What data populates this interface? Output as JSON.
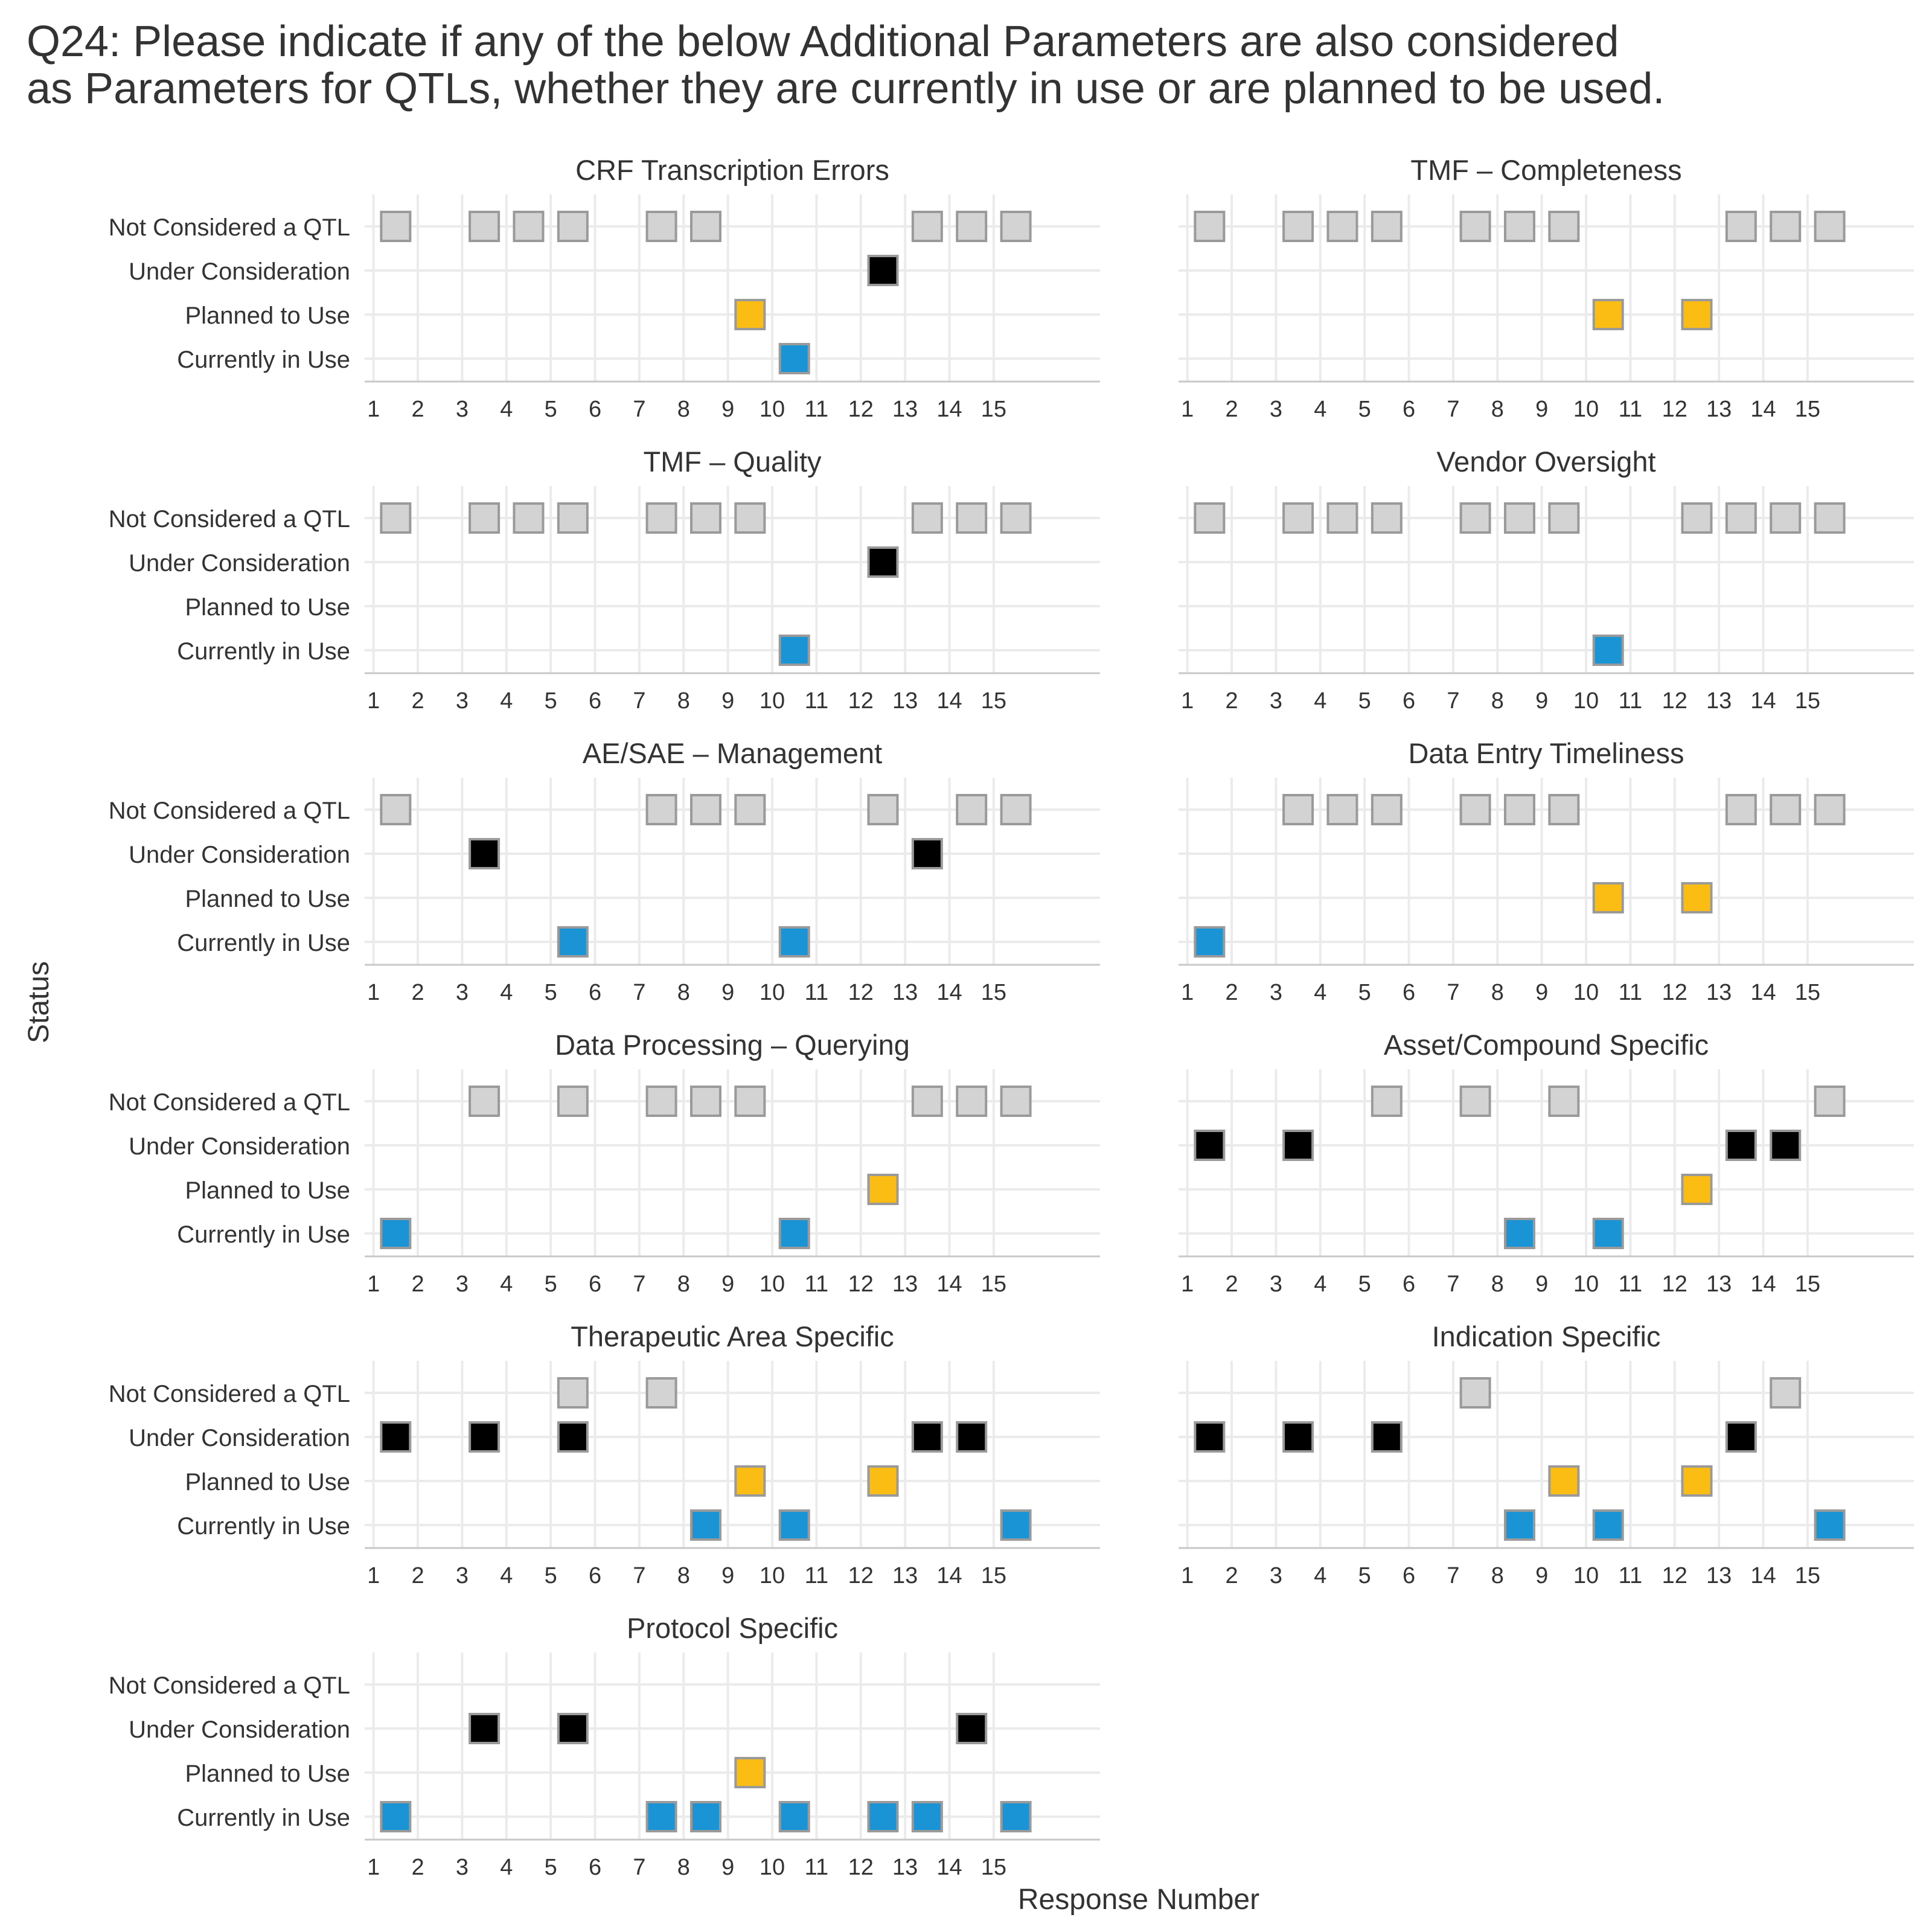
{
  "title_lines": [
    "Q24: Please indicate if any of the below Additional Parameters are also considered",
    "as Parameters for QTLs, whether they are currently in use or are planned to be used."
  ],
  "chart_data": {
    "type": "scatter",
    "title": "Q24: Please indicate if any of the below Additional Parameters are also considered as Parameters for QTLs, whether they are currently in use or are planned to be used.",
    "xlabel": "Response Number",
    "ylabel": "Status",
    "x_ticks": [
      1,
      2,
      3,
      4,
      5,
      6,
      7,
      8,
      9,
      10,
      11,
      12,
      13,
      14,
      15
    ],
    "x_range": [
      0.8,
      17.4
    ],
    "status_levels": [
      "Not Considered a QTL",
      "Under Consideration",
      "Planned to Use",
      "Currently in Use"
    ],
    "grid": true,
    "colors": {
      "Not Considered a QTL": "#d3d3d3",
      "Under Consideration": "#000000",
      "Planned to Use": "#fbbc14",
      "Currently in Use": "#1a94d4",
      "marker_border": "#9a9a9a"
    },
    "panels": [
      {
        "name": "CRF Transcription Errors",
        "points": [
          {
            "x": 1,
            "status": "Not Considered a QTL"
          },
          {
            "x": 3,
            "status": "Not Considered a QTL"
          },
          {
            "x": 4,
            "status": "Not Considered a QTL"
          },
          {
            "x": 5,
            "status": "Not Considered a QTL"
          },
          {
            "x": 7,
            "status": "Not Considered a QTL"
          },
          {
            "x": 8,
            "status": "Not Considered a QTL"
          },
          {
            "x": 9,
            "status": "Planned to Use"
          },
          {
            "x": 10,
            "status": "Currently in Use"
          },
          {
            "x": 12,
            "status": "Under Consideration"
          },
          {
            "x": 13,
            "status": "Not Considered a QTL"
          },
          {
            "x": 14,
            "status": "Not Considered a QTL"
          },
          {
            "x": 15,
            "status": "Not Considered a QTL"
          }
        ]
      },
      {
        "name": "TMF – Completeness",
        "points": [
          {
            "x": 1,
            "status": "Not Considered a QTL"
          },
          {
            "x": 3,
            "status": "Not Considered a QTL"
          },
          {
            "x": 4,
            "status": "Not Considered a QTL"
          },
          {
            "x": 5,
            "status": "Not Considered a QTL"
          },
          {
            "x": 7,
            "status": "Not Considered a QTL"
          },
          {
            "x": 8,
            "status": "Not Considered a QTL"
          },
          {
            "x": 9,
            "status": "Not Considered a QTL"
          },
          {
            "x": 10,
            "status": "Planned to Use"
          },
          {
            "x": 12,
            "status": "Planned to Use"
          },
          {
            "x": 13,
            "status": "Not Considered a QTL"
          },
          {
            "x": 14,
            "status": "Not Considered a QTL"
          },
          {
            "x": 15,
            "status": "Not Considered a QTL"
          }
        ]
      },
      {
        "name": "TMF – Quality",
        "points": [
          {
            "x": 1,
            "status": "Not Considered a QTL"
          },
          {
            "x": 3,
            "status": "Not Considered a QTL"
          },
          {
            "x": 4,
            "status": "Not Considered a QTL"
          },
          {
            "x": 5,
            "status": "Not Considered a QTL"
          },
          {
            "x": 7,
            "status": "Not Considered a QTL"
          },
          {
            "x": 8,
            "status": "Not Considered a QTL"
          },
          {
            "x": 9,
            "status": "Not Considered a QTL"
          },
          {
            "x": 10,
            "status": "Currently in Use"
          },
          {
            "x": 12,
            "status": "Under Consideration"
          },
          {
            "x": 13,
            "status": "Not Considered a QTL"
          },
          {
            "x": 14,
            "status": "Not Considered a QTL"
          },
          {
            "x": 15,
            "status": "Not Considered a QTL"
          }
        ]
      },
      {
        "name": "Vendor Oversight",
        "points": [
          {
            "x": 1,
            "status": "Not Considered a QTL"
          },
          {
            "x": 3,
            "status": "Not Considered a QTL"
          },
          {
            "x": 4,
            "status": "Not Considered a QTL"
          },
          {
            "x": 5,
            "status": "Not Considered a QTL"
          },
          {
            "x": 7,
            "status": "Not Considered a QTL"
          },
          {
            "x": 8,
            "status": "Not Considered a QTL"
          },
          {
            "x": 9,
            "status": "Not Considered a QTL"
          },
          {
            "x": 10,
            "status": "Currently in Use"
          },
          {
            "x": 12,
            "status": "Not Considered a QTL"
          },
          {
            "x": 13,
            "status": "Not Considered a QTL"
          },
          {
            "x": 14,
            "status": "Not Considered a QTL"
          },
          {
            "x": 15,
            "status": "Not Considered a QTL"
          }
        ]
      },
      {
        "name": "AE/SAE – Management",
        "points": [
          {
            "x": 1,
            "status": "Not Considered a QTL"
          },
          {
            "x": 3,
            "status": "Under Consideration"
          },
          {
            "x": 5,
            "status": "Currently in Use"
          },
          {
            "x": 7,
            "status": "Not Considered a QTL"
          },
          {
            "x": 8,
            "status": "Not Considered a QTL"
          },
          {
            "x": 9,
            "status": "Not Considered a QTL"
          },
          {
            "x": 10,
            "status": "Currently in Use"
          },
          {
            "x": 12,
            "status": "Not Considered a QTL"
          },
          {
            "x": 13,
            "status": "Under Consideration"
          },
          {
            "x": 14,
            "status": "Not Considered a QTL"
          },
          {
            "x": 15,
            "status": "Not Considered a QTL"
          }
        ]
      },
      {
        "name": "Data Entry Timeliness",
        "points": [
          {
            "x": 1,
            "status": "Currently in Use"
          },
          {
            "x": 3,
            "status": "Not Considered a QTL"
          },
          {
            "x": 4,
            "status": "Not Considered a QTL"
          },
          {
            "x": 5,
            "status": "Not Considered a QTL"
          },
          {
            "x": 7,
            "status": "Not Considered a QTL"
          },
          {
            "x": 8,
            "status": "Not Considered a QTL"
          },
          {
            "x": 9,
            "status": "Not Considered a QTL"
          },
          {
            "x": 10,
            "status": "Planned to Use"
          },
          {
            "x": 12,
            "status": "Planned to Use"
          },
          {
            "x": 13,
            "status": "Not Considered a QTL"
          },
          {
            "x": 14,
            "status": "Not Considered a QTL"
          },
          {
            "x": 15,
            "status": "Not Considered a QTL"
          }
        ]
      },
      {
        "name": "Data Processing – Querying",
        "points": [
          {
            "x": 1,
            "status": "Currently in Use"
          },
          {
            "x": 3,
            "status": "Not Considered a QTL"
          },
          {
            "x": 5,
            "status": "Not Considered a QTL"
          },
          {
            "x": 7,
            "status": "Not Considered a QTL"
          },
          {
            "x": 8,
            "status": "Not Considered a QTL"
          },
          {
            "x": 9,
            "status": "Not Considered a QTL"
          },
          {
            "x": 10,
            "status": "Currently in Use"
          },
          {
            "x": 12,
            "status": "Planned to Use"
          },
          {
            "x": 13,
            "status": "Not Considered a QTL"
          },
          {
            "x": 14,
            "status": "Not Considered a QTL"
          },
          {
            "x": 15,
            "status": "Not Considered a QTL"
          }
        ]
      },
      {
        "name": "Asset/Compound Specific",
        "points": [
          {
            "x": 1,
            "status": "Under Consideration"
          },
          {
            "x": 3,
            "status": "Under Consideration"
          },
          {
            "x": 5,
            "status": "Not Considered a QTL"
          },
          {
            "x": 7,
            "status": "Not Considered a QTL"
          },
          {
            "x": 8,
            "status": "Currently in Use"
          },
          {
            "x": 9,
            "status": "Not Considered a QTL"
          },
          {
            "x": 10,
            "status": "Currently in Use"
          },
          {
            "x": 12,
            "status": "Planned to Use"
          },
          {
            "x": 13,
            "status": "Under Consideration"
          },
          {
            "x": 14,
            "status": "Under Consideration"
          },
          {
            "x": 15,
            "status": "Not Considered a QTL"
          }
        ]
      },
      {
        "name": "Therapeutic Area Specific",
        "points": [
          {
            "x": 1,
            "status": "Under Consideration"
          },
          {
            "x": 3,
            "status": "Under Consideration"
          },
          {
            "x": 5,
            "status": "Not Considered a QTL"
          },
          {
            "x": 5,
            "status": "Under Consideration"
          },
          {
            "x": 7,
            "status": "Not Considered a QTL"
          },
          {
            "x": 8,
            "status": "Currently in Use"
          },
          {
            "x": 9,
            "status": "Planned to Use"
          },
          {
            "x": 10,
            "status": "Currently in Use"
          },
          {
            "x": 12,
            "status": "Planned to Use"
          },
          {
            "x": 13,
            "status": "Under Consideration"
          },
          {
            "x": 14,
            "status": "Under Consideration"
          },
          {
            "x": 15,
            "status": "Currently in Use"
          }
        ]
      },
      {
        "name": "Indication Specific",
        "points": [
          {
            "x": 1,
            "status": "Under Consideration"
          },
          {
            "x": 3,
            "status": "Under Consideration"
          },
          {
            "x": 5,
            "status": "Under Consideration"
          },
          {
            "x": 7,
            "status": "Not Considered a QTL"
          },
          {
            "x": 8,
            "status": "Currently in Use"
          },
          {
            "x": 9,
            "status": "Planned to Use"
          },
          {
            "x": 10,
            "status": "Currently in Use"
          },
          {
            "x": 12,
            "status": "Planned to Use"
          },
          {
            "x": 13,
            "status": "Under Consideration"
          },
          {
            "x": 14,
            "status": "Not Considered a QTL"
          },
          {
            "x": 15,
            "status": "Currently in Use"
          }
        ]
      },
      {
        "name": "Protocol Specific",
        "points": [
          {
            "x": 1,
            "status": "Currently in Use"
          },
          {
            "x": 3,
            "status": "Under Consideration"
          },
          {
            "x": 5,
            "status": "Under Consideration"
          },
          {
            "x": 7,
            "status": "Currently in Use"
          },
          {
            "x": 8,
            "status": "Currently in Use"
          },
          {
            "x": 9,
            "status": "Planned to Use"
          },
          {
            "x": 10,
            "status": "Currently in Use"
          },
          {
            "x": 12,
            "status": "Currently in Use"
          },
          {
            "x": 13,
            "status": "Currently in Use"
          },
          {
            "x": 14,
            "status": "Under Consideration"
          },
          {
            "x": 15,
            "status": "Currently in Use"
          }
        ]
      }
    ]
  }
}
